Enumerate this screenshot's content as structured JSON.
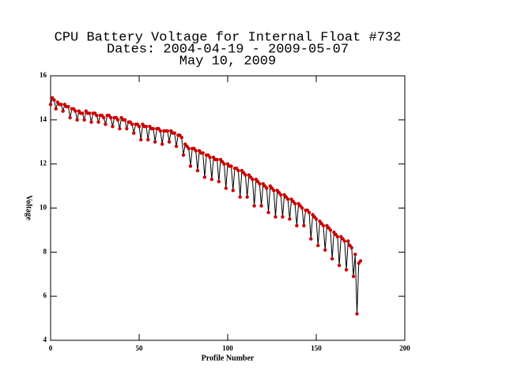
{
  "chart_data": {
    "type": "line",
    "title": [
      "CPU Battery Voltage for Internal Float #732",
      "Dates:  2004-04-19 -  2009-05-07",
      "May 10, 2009"
    ],
    "x_label": "Profile Number",
    "y_label": "Voltage",
    "xlim": [
      0,
      200
    ],
    "xticks": [
      0,
      50,
      100,
      150,
      200
    ],
    "ylim": [
      4,
      16
    ],
    "yticks": [
      4,
      6,
      8,
      10,
      12,
      14,
      16
    ],
    "line_color": "#000000",
    "marker_color": "#cc0000",
    "x": [
      0,
      1,
      2,
      3,
      4,
      5,
      6,
      7,
      8,
      9,
      10,
      11,
      12,
      13,
      14,
      15,
      16,
      17,
      18,
      19,
      20,
      21,
      22,
      23,
      24,
      25,
      26,
      27,
      28,
      29,
      30,
      31,
      32,
      33,
      34,
      35,
      36,
      37,
      38,
      39,
      40,
      41,
      42,
      43,
      44,
      45,
      46,
      47,
      48,
      49,
      50,
      51,
      52,
      53,
      54,
      55,
      56,
      57,
      58,
      59,
      60,
      61,
      62,
      63,
      64,
      65,
      66,
      67,
      68,
      69,
      70,
      71,
      72,
      73,
      74,
      75,
      76,
      77,
      78,
      79,
      80,
      81,
      82,
      83,
      84,
      85,
      86,
      87,
      88,
      89,
      90,
      91,
      92,
      93,
      94,
      95,
      96,
      97,
      98,
      99,
      100,
      101,
      102,
      103,
      104,
      105,
      106,
      107,
      108,
      109,
      110,
      111,
      112,
      113,
      114,
      115,
      116,
      117,
      118,
      119,
      120,
      121,
      122,
      123,
      124,
      125,
      126,
      127,
      128,
      129,
      130,
      131,
      132,
      133,
      134,
      135,
      136,
      137,
      138,
      139,
      140,
      141,
      142,
      143,
      144,
      145,
      146,
      147,
      148,
      149,
      150,
      151,
      152,
      153,
      154,
      155,
      156,
      157,
      158,
      159,
      160,
      161,
      162,
      163,
      164,
      165,
      166,
      167,
      168,
      169,
      170,
      171,
      172,
      173,
      174,
      175
    ],
    "values": [
      14.7,
      15.0,
      14.9,
      14.5,
      14.8,
      14.7,
      14.7,
      14.4,
      14.7,
      14.6,
      14.6,
      14.1,
      14.5,
      14.5,
      14.4,
      14.0,
      14.4,
      14.3,
      14.3,
      14.0,
      14.4,
      14.3,
      14.3,
      13.9,
      14.3,
      14.3,
      14.2,
      13.9,
      14.2,
      14.2,
      14.1,
      13.8,
      14.2,
      14.2,
      14.1,
      13.7,
      14.1,
      14.1,
      14.0,
      13.6,
      14.1,
      14.0,
      14.0,
      13.6,
      13.9,
      13.9,
      13.8,
      13.4,
      13.8,
      13.8,
      13.7,
      13.1,
      13.8,
      13.7,
      13.7,
      13.1,
      13.7,
      13.6,
      13.6,
      13.0,
      13.6,
      13.6,
      13.5,
      12.9,
      13.5,
      13.5,
      13.5,
      13.0,
      13.5,
      13.4,
      13.4,
      12.8,
      13.3,
      13.3,
      13.2,
      12.4,
      12.9,
      12.8,
      12.7,
      11.9,
      12.7,
      12.7,
      12.6,
      11.7,
      12.6,
      12.5,
      12.5,
      11.4,
      12.4,
      12.4,
      12.3,
      11.3,
      12.3,
      12.2,
      12.2,
      11.2,
      12.2,
      12.1,
      12.0,
      10.9,
      12.0,
      11.9,
      11.9,
      10.8,
      11.8,
      11.8,
      11.7,
      10.5,
      11.7,
      11.6,
      11.5,
      10.5,
      11.5,
      11.4,
      11.3,
      10.1,
      11.3,
      11.2,
      11.1,
      10.1,
      11.1,
      11.0,
      10.9,
      9.8,
      11.0,
      10.9,
      10.8,
      9.6,
      10.8,
      10.7,
      10.6,
      9.6,
      10.6,
      10.5,
      10.4,
      9.5,
      10.4,
      10.3,
      10.2,
      9.2,
      10.2,
      10.1,
      10.0,
      9.2,
      9.9,
      9.9,
      9.8,
      8.6,
      9.7,
      9.6,
      9.5,
      8.3,
      9.4,
      9.3,
      9.2,
      8.1,
      9.2,
      9.1,
      9.0,
      7.7,
      8.9,
      8.8,
      8.7,
      7.4,
      8.7,
      8.6,
      8.5,
      7.2,
      8.5,
      8.3,
      8.2,
      6.9,
      7.9,
      5.2,
      7.5,
      7.6
    ]
  }
}
